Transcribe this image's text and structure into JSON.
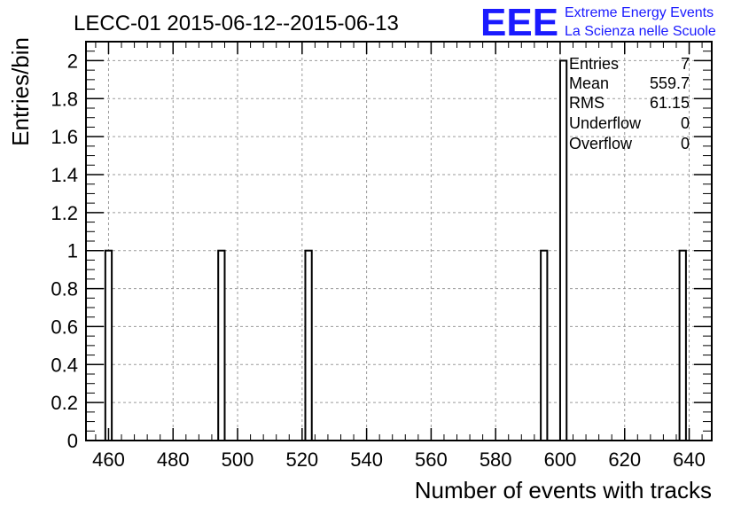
{
  "header": {
    "title": "LECC-01 2015-06-12--2015-06-13",
    "logo_text": "EEE",
    "logo_line1": "Extreme Energy Events",
    "logo_line2": "La Scienza nelle Scuole",
    "logo_color": "#1a1aff"
  },
  "stats": {
    "rows": [
      {
        "label": "Entries",
        "value": "7"
      },
      {
        "label": "Mean",
        "value": "559.7"
      },
      {
        "label": "RMS",
        "value": "61.15"
      },
      {
        "label": "Underflow",
        "value": "0"
      },
      {
        "label": "Overflow",
        "value": "0"
      }
    ]
  },
  "chart_data": {
    "type": "bar",
    "title": "LECC-01 2015-06-12--2015-06-13",
    "xlabel": "Number of events with tracks",
    "ylabel": "Entries/bin",
    "xlim": [
      453,
      647
    ],
    "ylim": [
      0,
      2.1
    ],
    "grid": true,
    "bin_width": 2,
    "bins": [
      {
        "x": 460,
        "value": 1
      },
      {
        "x": 495,
        "value": 1
      },
      {
        "x": 522,
        "value": 1
      },
      {
        "x": 595,
        "value": 1
      },
      {
        "x": 601,
        "value": 2
      },
      {
        "x": 638,
        "value": 1
      }
    ],
    "x_ticks": [
      460,
      480,
      500,
      520,
      540,
      560,
      580,
      600,
      620,
      640
    ],
    "y_ticks": [
      0,
      0.2,
      0.4,
      0.6,
      0.8,
      1,
      1.2,
      1.4,
      1.6,
      1.8,
      2
    ],
    "bar_color": "#ffffff",
    "line_color": "#000000"
  }
}
